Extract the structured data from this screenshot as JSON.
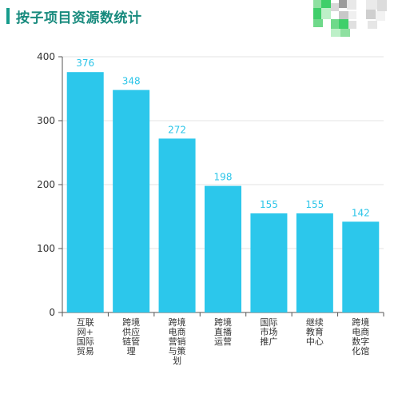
{
  "header": {
    "title": "按子项目资源数统计"
  },
  "colors": {
    "bar": "#2cc7eb",
    "title_accent": "#169c8c",
    "data_label": "#2bc5e8"
  },
  "chart_data": {
    "type": "bar",
    "title": "按子项目资源数统计",
    "xlabel": "",
    "ylabel": "",
    "ylim": [
      0,
      400
    ],
    "yticks": [
      0,
      100,
      200,
      300,
      400
    ],
    "grid": true,
    "categories": [
      "互联网+国际贸易",
      "跨境供应链管理",
      "跨境电商营销与策划",
      "跨境直播运营",
      "国际市场推广",
      "继续教育中心",
      "跨境电商数字化馆"
    ],
    "category_lines": [
      [
        "互联",
        "网+",
        "国际",
        "贸易"
      ],
      [
        "跨境",
        "供应",
        "链管",
        "理"
      ],
      [
        "跨境",
        "电商",
        "营销",
        "与策",
        "划"
      ],
      [
        "跨境",
        "直播",
        "运营"
      ],
      [
        "国际",
        "市场",
        "推广"
      ],
      [
        "继续",
        "教育",
        "中心"
      ],
      [
        "跨境",
        "电商",
        "数字",
        "化馆"
      ]
    ],
    "values": [
      376,
      348,
      272,
      198,
      155,
      155,
      142
    ]
  }
}
